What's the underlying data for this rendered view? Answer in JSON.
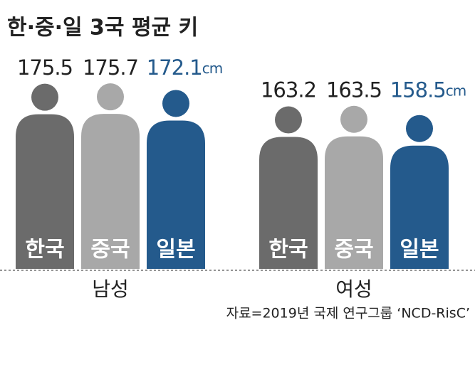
{
  "chart_data": {
    "type": "bar",
    "title": "한·중·일 3국 평균 키",
    "categories": [
      "한국",
      "중국",
      "일본"
    ],
    "colors": [
      "#6b6b6b",
      "#a8a8a8",
      "#245a8c"
    ],
    "value_label_colors": [
      "#222222",
      "#222222",
      "#245a8c"
    ],
    "series": [
      {
        "name": "남성",
        "values": [
          175.5,
          175.7,
          172.1
        ]
      },
      {
        "name": "여성",
        "values": [
          163.2,
          163.5,
          158.5
        ]
      }
    ],
    "unit": "cm",
    "ylim": [
      75,
      180
    ],
    "source": "자료=2019년 국제 연구그룹 ‘NCD-RisC’"
  }
}
